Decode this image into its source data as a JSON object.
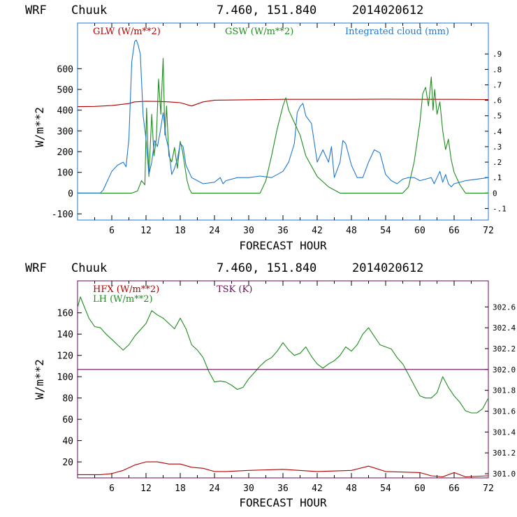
{
  "colors": {
    "red": "#b00000",
    "green": "#1e8c1e",
    "blue": "#1e78d2",
    "purple": "#6a0a5a",
    "black": "#000000"
  },
  "chart_data": [
    {
      "type": "line",
      "header": {
        "model": "WRF",
        "station": "Chuuk",
        "coords": "7.460, 151.840",
        "datetime": "2014020612"
      },
      "xlabel": "FORECAST HOUR",
      "ylabel": "W/m**2",
      "xlim": [
        0,
        72
      ],
      "ylim": [
        -130,
        820
      ],
      "xticks": [
        "6",
        "12",
        "18",
        "24",
        "30",
        "36",
        "42",
        "48",
        "54",
        "60",
        "66",
        "72"
      ],
      "yticks": [
        "-100",
        "0",
        "100",
        "200",
        "300",
        "400",
        "500",
        "600"
      ],
      "y2lim": [
        -0.175,
        1.1
      ],
      "y2ticks": [
        "-.1",
        "0",
        ".1",
        ".2",
        ".3",
        ".4",
        ".5",
        ".6",
        ".7",
        ".8",
        ".9"
      ],
      "series": [
        {
          "name": "GLW (W/m**2)",
          "axis": "left",
          "color": "red",
          "x": [
            0,
            3,
            6,
            9,
            10,
            12,
            14,
            16,
            18,
            20,
            22,
            24,
            30,
            36,
            42,
            48,
            54,
            60,
            66,
            72
          ],
          "y": [
            417,
            418,
            422,
            432,
            440,
            443,
            442,
            440,
            436,
            420,
            440,
            448,
            450,
            452,
            452,
            452,
            453,
            452,
            452,
            451
          ]
        },
        {
          "name": "GSW (W/m**2)",
          "axis": "left",
          "color": "green",
          "x": [
            0,
            8,
            9.5,
            10.5,
            11.2,
            11.8,
            12.1,
            12.5,
            13.0,
            13.4,
            13.8,
            14.2,
            14.6,
            15.0,
            15.3,
            15.6,
            16.0,
            16.5,
            17.0,
            17.5,
            18.0,
            18.4,
            18.8,
            19.2,
            19.6,
            20.0,
            23,
            26,
            29,
            32,
            33,
            34,
            35,
            36,
            36.5,
            37,
            38,
            39,
            40,
            42,
            44,
            46,
            50,
            54,
            57,
            58,
            59,
            60,
            60.5,
            61,
            61.5,
            62,
            62.3,
            62.6,
            63,
            63.5,
            64,
            64.5,
            65,
            65.5,
            66,
            67,
            68,
            72
          ],
          "y": [
            0,
            0,
            0,
            10,
            60,
            40,
            410,
            80,
            380,
            180,
            260,
            550,
            380,
            650,
            280,
            420,
            180,
            150,
            220,
            120,
            250,
            200,
            130,
            60,
            20,
            0,
            0,
            0,
            0,
            0,
            60,
            180,
            310,
            420,
            460,
            400,
            340,
            280,
            180,
            80,
            30,
            0,
            0,
            0,
            0,
            30,
            150,
            340,
            480,
            510,
            420,
            560,
            400,
            500,
            380,
            440,
            300,
            210,
            260,
            160,
            100,
            40,
            0,
            0
          ]
        },
        {
          "name": "Integrated cloud (mm)",
          "axis": "right",
          "color": "blue",
          "x": [
            0,
            4,
            4.5,
            5,
            5.5,
            6,
            7,
            8,
            8.5,
            9,
            9.5,
            10,
            10.3,
            10.6,
            11,
            11.5,
            12,
            12.5,
            13,
            13.5,
            14,
            14.5,
            15,
            15.5,
            16,
            16.5,
            17,
            17.5,
            18,
            18.5,
            19,
            20,
            22,
            24,
            25,
            25.5,
            26,
            28,
            30,
            32,
            34,
            36,
            37,
            38,
            38.5,
            39,
            39.5,
            40,
            41,
            42,
            43,
            44,
            44.5,
            45,
            46,
            46.5,
            47,
            48,
            49,
            50,
            51,
            52,
            53,
            54,
            55,
            56,
            57,
            58,
            59,
            60,
            61,
            62,
            62.5,
            63,
            63.5,
            64,
            64.5,
            65,
            65.5,
            66,
            68,
            70,
            72
          ],
          "y": [
            0,
            0,
            0.02,
            0.06,
            0.1,
            0.14,
            0.18,
            0.2,
            0.17,
            0.35,
            0.85,
            0.98,
            0.99,
            0.96,
            0.9,
            0.5,
            0.35,
            0.12,
            0.2,
            0.34,
            0.3,
            0.4,
            0.52,
            0.36,
            0.28,
            0.12,
            0.16,
            0.22,
            0.32,
            0.3,
            0.18,
            0.1,
            0.06,
            0.07,
            0.1,
            0.06,
            0.08,
            0.1,
            0.1,
            0.11,
            0.1,
            0.14,
            0.2,
            0.32,
            0.52,
            0.56,
            0.58,
            0.5,
            0.45,
            0.2,
            0.28,
            0.2,
            0.3,
            0.1,
            0.2,
            0.34,
            0.32,
            0.18,
            0.1,
            0.1,
            0.2,
            0.28,
            0.26,
            0.12,
            0.08,
            0.06,
            0.09,
            0.1,
            0.1,
            0.08,
            0.09,
            0.1,
            0.06,
            0.1,
            0.14,
            0.07,
            0.12,
            0.06,
            0.04,
            0.06,
            0.08,
            0.09,
            0.1
          ]
        }
      ]
    },
    {
      "type": "line",
      "header": {
        "model": "WRF",
        "station": "Chuuk",
        "coords": "7.460, 151.840",
        "datetime": "2014020612"
      },
      "xlabel": "FORECAST HOUR",
      "ylabel": "W/m**2",
      "xlim": [
        0,
        72
      ],
      "ylim": [
        5,
        190
      ],
      "xticks": [
        "6",
        "12",
        "18",
        "24",
        "30",
        "36",
        "42",
        "48",
        "54",
        "60",
        "66",
        "72"
      ],
      "yticks": [
        "20",
        "40",
        "60",
        "80",
        "100",
        "120",
        "140",
        "160"
      ],
      "y2lim": [
        300.96,
        302.85
      ],
      "y2ticks": [
        "301.0",
        "301.2",
        "301.4",
        "301.6",
        "301.8",
        "302.0",
        "302.2",
        "302.4",
        "302.6"
      ],
      "series": [
        {
          "name": "HFX (W/m**2)",
          "axis": "left",
          "color": "red",
          "x": [
            0,
            4,
            6,
            8,
            10,
            12,
            14,
            16,
            18,
            20,
            22,
            24,
            26,
            30,
            36,
            42,
            48,
            51,
            54,
            60,
            62,
            64,
            66,
            68,
            72
          ],
          "y": [
            8,
            8,
            9,
            12,
            17,
            20,
            20,
            18,
            18,
            15,
            14,
            11,
            11,
            12,
            13,
            11,
            12,
            16,
            11,
            10,
            7,
            6,
            10,
            6,
            7
          ]
        },
        {
          "name": "LH (W/m**2)",
          "axis": "left",
          "color": "green",
          "x": [
            0,
            0.5,
            1,
            2,
            3,
            4,
            5,
            6,
            7,
            8,
            9,
            10,
            11,
            12,
            13,
            14,
            15,
            16,
            17,
            18,
            19,
            20,
            21,
            22,
            23,
            24,
            25,
            26,
            27,
            28,
            29,
            30,
            31,
            32,
            33,
            34,
            35,
            36,
            37,
            38,
            39,
            40,
            41,
            42,
            43,
            44,
            45,
            46,
            47,
            48,
            49,
            50,
            51,
            52,
            53,
            54,
            55,
            56,
            57,
            58,
            59,
            60,
            61,
            62,
            63,
            64,
            65,
            66,
            67,
            68,
            69,
            70,
            71,
            72
          ],
          "y": [
            165,
            175,
            168,
            155,
            147,
            146,
            140,
            135,
            130,
            125,
            130,
            138,
            144,
            150,
            162,
            158,
            155,
            150,
            145,
            155,
            145,
            130,
            125,
            118,
            105,
            95,
            96,
            95,
            92,
            88,
            90,
            98,
            104,
            110,
            115,
            118,
            124,
            132,
            125,
            120,
            122,
            128,
            119,
            112,
            108,
            112,
            115,
            120,
            128,
            124,
            130,
            140,
            146,
            138,
            130,
            128,
            126,
            118,
            112,
            102,
            92,
            82,
            80,
            80,
            85,
            100,
            90,
            82,
            76,
            68,
            66,
            66,
            70,
            80
          ]
        },
        {
          "name": "TSK (K)",
          "axis": "right",
          "color": "purple",
          "x": [
            0,
            72
          ],
          "y": [
            302.0,
            302.0
          ]
        }
      ]
    }
  ]
}
